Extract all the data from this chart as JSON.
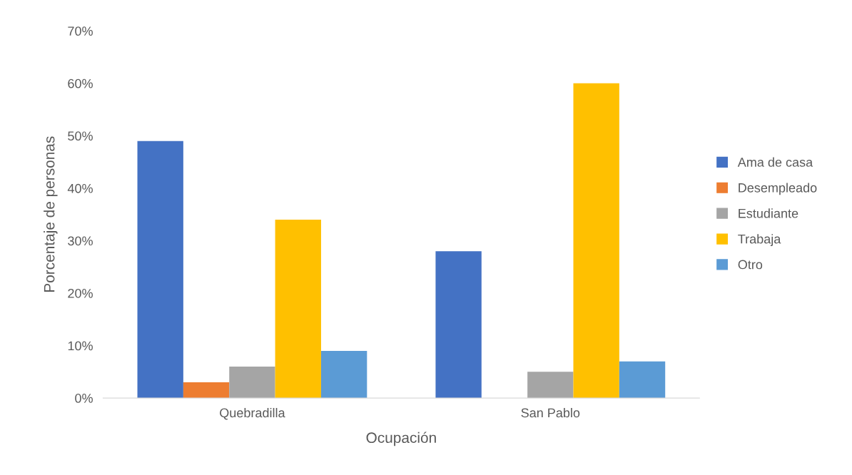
{
  "chart_data": {
    "type": "bar",
    "xlabel": "Ocupación",
    "ylabel": "Porcentaje de personas",
    "categories": [
      "Quebradilla",
      "San Pablo"
    ],
    "series": [
      {
        "name": "Ama de casa",
        "color": "#4472c4",
        "values": [
          49,
          28
        ]
      },
      {
        "name": "Desempleado",
        "color": "#ed7d31",
        "values": [
          3,
          0
        ]
      },
      {
        "name": "Estudiante",
        "color": "#a5a5a5",
        "values": [
          6,
          5
        ]
      },
      {
        "name": "Trabaja",
        "color": "#ffc000",
        "values": [
          34,
          60
        ]
      },
      {
        "name": "Otro",
        "color": "#5b9bd5",
        "values": [
          9,
          7
        ]
      }
    ],
    "ylim": [
      0,
      70
    ],
    "yticks": [
      {
        "value": 0,
        "label": "0%"
      },
      {
        "value": 10,
        "label": "10%"
      },
      {
        "value": 20,
        "label": "20%"
      },
      {
        "value": 30,
        "label": "30%"
      },
      {
        "value": 40,
        "label": "40%"
      },
      {
        "value": 50,
        "label": "50%"
      },
      {
        "value": 60,
        "label": "60%"
      },
      {
        "value": 70,
        "label": "70%"
      }
    ],
    "grid": false,
    "legend": "right"
  }
}
